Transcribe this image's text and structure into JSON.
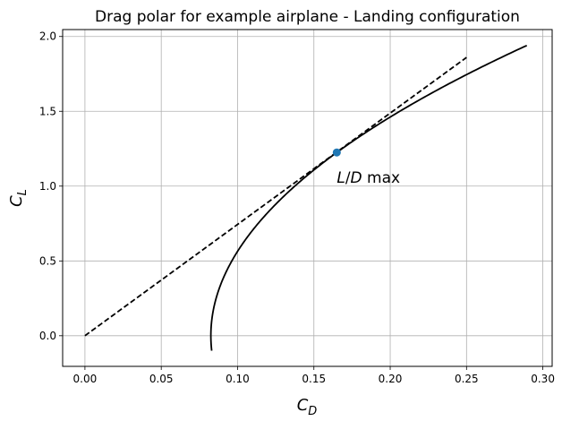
{
  "chart_data": {
    "type": "line",
    "title": "Drag polar for example airplane - Landing configuration",
    "xlabel": {
      "main": "C",
      "sub": "D"
    },
    "ylabel": {
      "main": "C",
      "sub": "L"
    },
    "xlim": [
      -0.0146,
      0.3061
    ],
    "ylim": [
      -0.2046,
      2.0463
    ],
    "xticks": [
      {
        "value": 0.0,
        "label": "0.00"
      },
      {
        "value": 0.05,
        "label": "0.05"
      },
      {
        "value": 0.1,
        "label": "0.10"
      },
      {
        "value": 0.15,
        "label": "0.15"
      },
      {
        "value": 0.2,
        "label": "0.20"
      },
      {
        "value": 0.25,
        "label": "0.25"
      },
      {
        "value": 0.3,
        "label": "0.30"
      }
    ],
    "yticks": [
      {
        "value": 0.0,
        "label": "0.0"
      },
      {
        "value": 0.5,
        "label": "0.5"
      },
      {
        "value": 1.0,
        "label": "1.0"
      },
      {
        "value": 1.5,
        "label": "1.5"
      },
      {
        "value": 2.0,
        "label": "2.0"
      }
    ],
    "grid": true,
    "polar": {
      "cd0": 0.0825,
      "k": 0.055,
      "cl_range": [
        -0.1,
        1.94
      ]
    },
    "tangent": {
      "x": [
        0.0,
        0.25
      ],
      "y": [
        0.0,
        1.86
      ]
    },
    "ld_max_point": {
      "x": 0.165,
      "y": 1.225
    },
    "annotation": {
      "prefix": "L",
      "slash": "/",
      "suffix": "D",
      "text": " max",
      "x": 0.165,
      "y": 1.06
    },
    "colors": {
      "polar": "#000000",
      "tangent": "#000000",
      "point": "#1f77b4"
    }
  }
}
